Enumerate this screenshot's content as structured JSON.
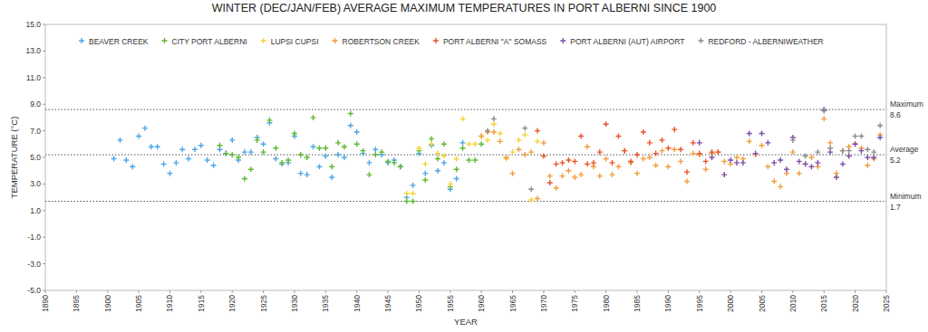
{
  "chart_data": {
    "type": "scatter",
    "title": "WINTER (DEC/JAN/FEB) AVERAGE MAXIMUM TEMPERATURES IN PORT ALBERNI SINCE 1900",
    "x_label": "YEAR",
    "y_label": "TEMPERATURE (°C)",
    "xlim": [
      1890,
      2025
    ],
    "xticks": [
      1890,
      1895,
      1900,
      1905,
      1910,
      1915,
      1920,
      1925,
      1930,
      1935,
      1940,
      1945,
      1950,
      1955,
      1960,
      1965,
      1970,
      1975,
      1980,
      1985,
      1990,
      1995,
      2000,
      2005,
      2010,
      2015,
      2020,
      2025
    ],
    "ylim": [
      -5,
      15
    ],
    "yticks": [
      {
        "value": -5,
        "label": "-5.0"
      },
      {
        "value": -3,
        "label": "-3.0"
      },
      {
        "value": -1,
        "label": "-1.0"
      },
      {
        "value": 1,
        "label": "1.0"
      },
      {
        "value": 3,
        "label": "3.0"
      },
      {
        "value": 5,
        "label": "5.0"
      },
      {
        "value": 7,
        "label": "7.0"
      },
      {
        "value": 9,
        "label": "9.0"
      },
      {
        "value": 11,
        "label": "11.0"
      },
      {
        "value": 13,
        "label": "13.0"
      },
      {
        "value": 15,
        "label": "15.0"
      }
    ],
    "grid": false,
    "legend": "top",
    "marker": "plus",
    "reference_lines": [
      {
        "label": "Maximum",
        "value": 8.6
      },
      {
        "label": "Average",
        "value": 5.2
      },
      {
        "label": "Minimum",
        "value": 1.7
      }
    ],
    "series": [
      {
        "name": "BEAVER CREEK",
        "color": "#4da6e8",
        "x": [
          1901,
          1902,
          1903,
          1904,
          1905,
          1906,
          1907,
          1908,
          1909,
          1910,
          1911,
          1912,
          1913,
          1914,
          1915,
          1916,
          1917,
          1918,
          1919,
          1920,
          1921,
          1922,
          1923,
          1924,
          1925,
          1926,
          1927,
          1928,
          1929,
          1930,
          1931,
          1932,
          1933,
          1934,
          1935,
          1936,
          1937,
          1938,
          1939,
          1940,
          1941,
          1942,
          1943,
          1944,
          1945,
          1946,
          1947,
          1948,
          1949,
          1950,
          1951,
          1952,
          1953,
          1954,
          1955,
          1956,
          1957
        ],
        "values": [
          4.9,
          6.3,
          4.8,
          4.3,
          6.6,
          7.2,
          5.8,
          5.8,
          4.5,
          3.8,
          4.6,
          5.6,
          4.9,
          5.6,
          5.9,
          4.8,
          4.4,
          5.6,
          5.3,
          6.3,
          4.8,
          5.4,
          5.4,
          6.5,
          6.0,
          7.6,
          4.9,
          4.5,
          4.6,
          6.6,
          3.8,
          3.7,
          5.8,
          4.3,
          5.1,
          3.5,
          5.2,
          5.0,
          7.4,
          6.9,
          5.3,
          4.6,
          5.6,
          5.2,
          4.6,
          4.8,
          4.3,
          2.0,
          2.9,
          5.3,
          3.8,
          5.9,
          4.0,
          4.6,
          2.6,
          3.4,
          6.1
        ]
      },
      {
        "name": "CITY PORT ALBERNI",
        "color": "#5db82f",
        "x": [
          1918,
          1919,
          1920,
          1921,
          1922,
          1923,
          1924,
          1925,
          1926,
          1927,
          1928,
          1929,
          1930,
          1931,
          1932,
          1933,
          1934,
          1935,
          1936,
          1937,
          1938,
          1939,
          1940,
          1941,
          1942,
          1943,
          1944,
          1945,
          1946,
          1947,
          1948,
          1949,
          1950,
          1951,
          1952,
          1953,
          1954,
          1955,
          1956,
          1957,
          1958,
          1959,
          1960
        ],
        "values": [
          5.9,
          5.3,
          5.2,
          5.0,
          3.4,
          4.1,
          6.3,
          5.4,
          7.8,
          5.7,
          4.6,
          4.8,
          6.8,
          5.2,
          5.0,
          8.0,
          5.7,
          5.7,
          4.3,
          6.1,
          5.8,
          8.3,
          6.0,
          5.5,
          3.7,
          5.2,
          5.4,
          4.7,
          4.6,
          4.3,
          1.7,
          1.7,
          5.5,
          3.3,
          6.4,
          4.9,
          6.0,
          2.8,
          4.1,
          5.7,
          4.8,
          4.8,
          6.0
        ]
      },
      {
        "name": "LUPSI CUPSI",
        "color": "#f5d33b",
        "x": [
          1948,
          1949,
          1950,
          1951,
          1952,
          1953,
          1954,
          1955,
          1956,
          1957,
          1958,
          1959,
          1960,
          1961,
          1962,
          1963,
          1964,
          1965,
          1966,
          1967,
          1968,
          1969
        ],
        "values": [
          2.3,
          2.3,
          5.7,
          4.5,
          6.0,
          5.3,
          5.1,
          3.0,
          4.9,
          7.9,
          6.0,
          6.0,
          6.6,
          6.3,
          7.5,
          6.8,
          4.9,
          5.4,
          6.3,
          6.7,
          1.8,
          6.2
        ]
      },
      {
        "name": "ROBERTSON CREEK",
        "color": "#f39c3c",
        "x": [
          1960,
          1961,
          1962,
          1963,
          1964,
          1965,
          1966,
          1967,
          1968,
          1969,
          1970,
          1971,
          1972,
          1973,
          1974,
          1975,
          1976,
          1977,
          1978,
          1979,
          1980,
          1981,
          1982,
          1983,
          1984,
          1985,
          1986,
          1987,
          1988,
          1989,
          1990,
          1991,
          1992,
          1993,
          1994,
          1995,
          1996,
          1997,
          1998,
          1999,
          2000,
          2001,
          2002,
          2003,
          2004,
          2005,
          2006,
          2007,
          2008,
          2009,
          2010,
          2011,
          2012,
          2013,
          2014,
          2015,
          2016,
          2017,
          2018,
          2019,
          2020,
          2021,
          2022,
          2023,
          2024
        ],
        "values": [
          6.6,
          6.9,
          6.9,
          6.2,
          5.0,
          3.8,
          5.6,
          5.2,
          5.4,
          1.9,
          6.1,
          3.6,
          2.7,
          3.6,
          4.0,
          3.5,
          3.7,
          5.8,
          4.3,
          3.6,
          4.9,
          3.7,
          4.3,
          5.5,
          4.6,
          3.8,
          4.9,
          5.0,
          4.4,
          5.5,
          4.3,
          5.6,
          4.7,
          3.2,
          5.3,
          5.2,
          4.1,
          5.3,
          5.4,
          4.7,
          4.5,
          5.0,
          4.9,
          6.2,
          5.2,
          5.9,
          4.3,
          3.2,
          2.8,
          3.8,
          5.4,
          3.8,
          4.5,
          5.0,
          4.3,
          7.9,
          6.1,
          3.8,
          5.5,
          5.8,
          6.0,
          5.7,
          4.4,
          4.9,
          6.7
        ]
      },
      {
        "name": "PORT ALBERNI \"A\" SOMASS",
        "color": "#e8542a",
        "x": [
          1969,
          1970,
          1971,
          1972,
          1973,
          1974,
          1975,
          1976,
          1977,
          1978,
          1979,
          1980,
          1981,
          1982,
          1983,
          1984,
          1985,
          1986,
          1987,
          1988,
          1989,
          1990,
          1991,
          1992,
          1993,
          1994,
          1995,
          1996,
          1997,
          1998
        ],
        "values": [
          7.0,
          5.1,
          3.1,
          4.5,
          4.6,
          4.8,
          4.7,
          6.6,
          4.5,
          4.6,
          5.4,
          7.5,
          4.6,
          6.6,
          5.5,
          4.7,
          5.2,
          6.9,
          6.1,
          5.3,
          6.3,
          5.7,
          7.1,
          5.6,
          3.9,
          6.1,
          5.3,
          4.7,
          5.4,
          5.4
        ]
      },
      {
        "name": "PORT ALBERNI (AUT) AIRPORT",
        "color": "#7e4fa8",
        "x": [
          1995,
          1997,
          1999,
          2000,
          2001,
          2002,
          2003,
          2004,
          2005,
          2006,
          2007,
          2008,
          2009,
          2010,
          2011,
          2012,
          2013,
          2014,
          2015,
          2016,
          2017,
          2018,
          2019,
          2020,
          2021,
          2022,
          2023,
          2024
        ],
        "values": [
          6.1,
          5.0,
          3.7,
          4.8,
          4.6,
          4.6,
          6.8,
          5.3,
          6.8,
          6.1,
          4.6,
          4.8,
          4.1,
          6.5,
          4.7,
          4.5,
          4.3,
          4.6,
          8.6,
          5.4,
          3.5,
          4.5,
          5.1,
          6.0,
          5.5,
          5.0,
          5.0,
          6.5
        ]
      },
      {
        "name": "REDFORD - ALBERNIWEATHER",
        "color": "#8c8c8c",
        "x": [
          1961,
          1962,
          1967,
          1968,
          2010,
          2012,
          2014,
          2015,
          2016,
          2018,
          2019,
          2020,
          2021,
          2022,
          2023,
          2024
        ],
        "values": [
          7.0,
          7.9,
          7.2,
          2.6,
          6.3,
          5.1,
          5.4,
          8.5,
          5.7,
          5.5,
          5.5,
          6.6,
          6.6,
          5.6,
          5.4,
          7.4
        ]
      }
    ]
  }
}
